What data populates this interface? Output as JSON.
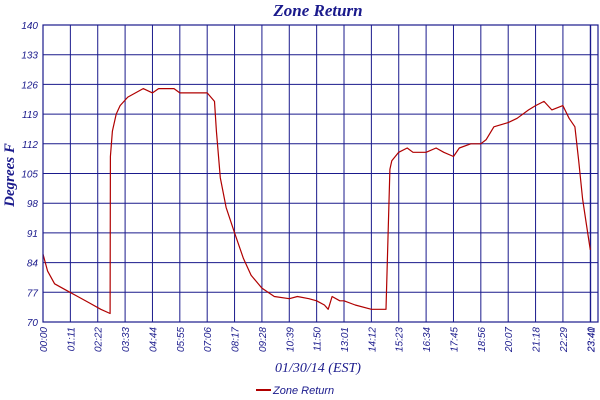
{
  "chart_data": {
    "type": "line",
    "title": "Zone Return",
    "xlabel": "01/30/14 (EST)",
    "ylabel": "Degrees F",
    "ylim": [
      70,
      140
    ],
    "y_ticks": [
      "70",
      "77",
      "84",
      "91",
      "98",
      "105",
      "112",
      "119",
      "126",
      "133",
      "140"
    ],
    "x_ticks": [
      "00:00",
      "01:11",
      "02:22",
      "03:33",
      "04:44",
      "05:55",
      "07:06",
      "08:17",
      "09:28",
      "10:39",
      "11:50",
      "13:01",
      "14:12",
      "15:23",
      "16:34",
      "17:45",
      "18:56",
      "20:07",
      "21:18",
      "22:29",
      "23:40",
      "23:41"
    ],
    "grid": true,
    "legend_position": "bottom-center",
    "colors": {
      "series": "#b00000",
      "grid": "#1a1a8c",
      "text": "#1a1a8c"
    },
    "series": [
      {
        "name": "Zone Return",
        "x": [
          "00:00",
          "00:12",
          "00:30",
          "01:00",
          "01:30",
          "02:00",
          "02:30",
          "02:54",
          "02:55",
          "03:00",
          "03:10",
          "03:20",
          "03:40",
          "04:00",
          "04:20",
          "04:44",
          "05:00",
          "05:20",
          "05:40",
          "05:55",
          "06:20",
          "06:40",
          "07:06",
          "07:25",
          "07:30",
          "07:40",
          "07:55",
          "08:17",
          "08:40",
          "09:00",
          "09:28",
          "10:00",
          "10:39",
          "11:00",
          "11:30",
          "11:50",
          "12:10",
          "12:20",
          "12:30",
          "12:50",
          "13:01",
          "13:30",
          "14:12",
          "14:50",
          "15:00",
          "15:05",
          "15:23",
          "15:45",
          "16:00",
          "16:34",
          "17:00",
          "17:20",
          "17:45",
          "18:00",
          "18:30",
          "18:56",
          "19:10",
          "19:30",
          "20:07",
          "20:30",
          "21:00",
          "21:18",
          "21:40",
          "22:00",
          "22:29",
          "22:45",
          "23:00",
          "23:10",
          "23:20",
          "23:30",
          "23:40"
        ],
        "values": [
          86,
          82,
          79,
          77.5,
          76,
          74.5,
          73,
          72,
          109,
          115,
          119,
          121,
          123,
          124,
          125,
          124,
          125,
          125,
          125,
          124,
          124,
          124,
          124,
          122,
          115,
          104,
          97,
          91,
          85,
          81,
          78,
          76,
          75.5,
          76,
          75.5,
          75,
          74,
          73,
          76,
          75,
          75,
          74,
          73,
          73,
          106,
          108,
          110,
          111,
          110,
          110,
          111,
          110,
          109,
          111,
          112,
          112,
          113,
          116,
          117,
          118,
          120,
          121,
          122,
          120,
          121,
          118,
          116,
          108,
          99,
          93,
          87
        ]
      }
    ]
  }
}
